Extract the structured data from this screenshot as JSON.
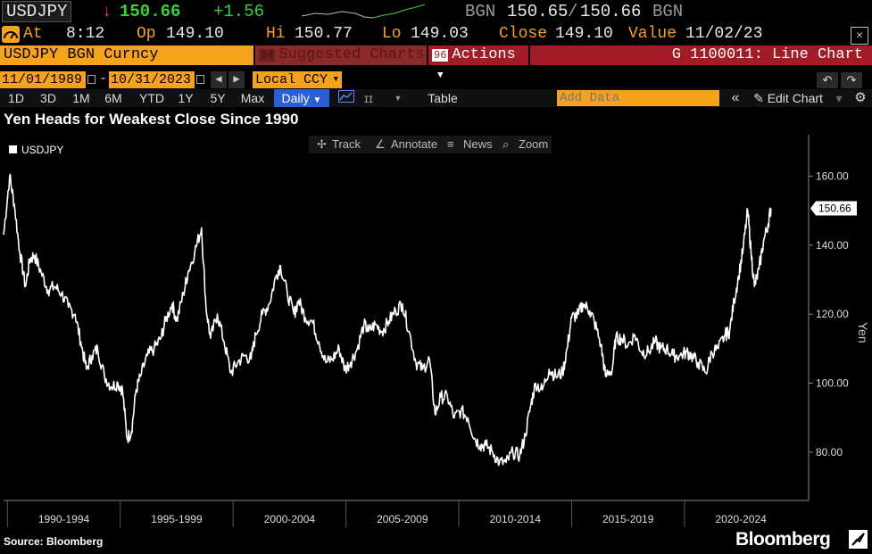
{
  "quote": {
    "ticker": "USDJPY",
    "arrow": "↓",
    "last": "150.66",
    "change": "+1.56",
    "bid_src": "BGN",
    "bid": "150.65",
    "sep": "/",
    "ask": "150.66",
    "ask_src": "BGN"
  },
  "stats": {
    "at_label": "At",
    "at_value": "8:12",
    "op_label": "Op",
    "op_value": "149.10",
    "hi_label": "Hi",
    "hi_value": "150.77",
    "lo_label": "Lo",
    "lo_value": "149.03",
    "close_label": "Close",
    "close_value": "149.10",
    "value_label": "Value",
    "value_value": "11/02/23",
    "close_icon": "✕"
  },
  "security_bar": {
    "security": "USDJPY BGN Curncy",
    "suggested_num": "94",
    "suggested_label": "Suggested Charts",
    "actions_num": "96",
    "actions_label": "Actions",
    "function_title": "G 1100011: Line Chart"
  },
  "range": {
    "start_date": "11/01/1989",
    "dash": "-",
    "end_date": "10/31/2023",
    "currency": "Local CCY"
  },
  "toolbar": {
    "periods": [
      "1D",
      "3D",
      "1M",
      "6M",
      "YTD",
      "1Y",
      "5Y",
      "Max"
    ],
    "frequency": "Daily",
    "table_label": "Table",
    "add_data_placeholder": "Add Data",
    "edit_chart_label": "Edit Chart"
  },
  "chart_tools": {
    "track": "Track",
    "annotate": "Annotate",
    "news": "News",
    "zoom": "Zoom"
  },
  "footer": {
    "source": "Source: Bloomberg",
    "brand": "Bloomberg"
  },
  "colors": {
    "accent": "#f7a21b",
    "actions_red": "#a21b25",
    "line": "#ffffff",
    "background": "#000000",
    "positive": "#3ccf3c",
    "negative": "#ff3b30"
  },
  "chart_data": {
    "type": "line",
    "title": "Yen Heads for Weakest Close Since 1990",
    "ylabel": "Yen",
    "legend": [
      "USDJPY"
    ],
    "legend_position": "top-left",
    "ylim": [
      66,
      172
    ],
    "xlim": [
      1989.83,
      2025.5
    ],
    "y_ticks": [
      80,
      100,
      120,
      140,
      160
    ],
    "y_tick_labels": [
      "80.00",
      "100.00",
      "120.00",
      "140.00",
      "160.00"
    ],
    "x_tick_labels": [
      "1990-1994",
      "1995-1999",
      "2000-2004",
      "2005-2009",
      "2010-2014",
      "2015-2019",
      "2020-2024"
    ],
    "last_value_label": "150.66",
    "grid": false,
    "series": [
      {
        "name": "USDJPY",
        "x": [
          1989.83,
          1990.1,
          1990.3,
          1990.55,
          1990.8,
          1991.0,
          1991.2,
          1991.5,
          1991.8,
          1992.1,
          1992.4,
          1992.7,
          1993.0,
          1993.25,
          1993.5,
          1993.75,
          1994.0,
          1994.3,
          1994.6,
          1994.9,
          1995.1,
          1995.3,
          1995.5,
          1995.7,
          1995.9,
          1996.2,
          1996.5,
          1996.8,
          1997.0,
          1997.3,
          1997.5,
          1997.8,
          1998.0,
          1998.3,
          1998.6,
          1998.8,
          1999.0,
          1999.3,
          1999.6,
          1999.9,
          2000.2,
          2000.5,
          2000.8,
          2001.0,
          2001.3,
          2001.6,
          2001.9,
          2002.1,
          2002.4,
          2002.7,
          2002.9,
          2003.2,
          2003.5,
          2003.8,
          2004.1,
          2004.4,
          2004.7,
          2004.95,
          2005.2,
          2005.5,
          2005.8,
          2006.0,
          2006.3,
          2006.6,
          2006.9,
          2007.2,
          2007.5,
          2007.8,
          2008.1,
          2008.4,
          2008.7,
          2008.95,
          2009.2,
          2009.5,
          2009.8,
          2010.1,
          2010.4,
          2010.7,
          2010.95,
          2011.2,
          2011.5,
          2011.8,
          2012.1,
          2012.4,
          2012.7,
          2012.95,
          2013.2,
          2013.4,
          2013.7,
          2014.0,
          2014.3,
          2014.6,
          2014.8,
          2015.0,
          2015.3,
          2015.5,
          2015.8,
          2016.0,
          2016.3,
          2016.5,
          2016.8,
          2016.95,
          2017.2,
          2017.5,
          2017.8,
          2018.1,
          2018.4,
          2018.7,
          2018.95,
          2019.2,
          2019.5,
          2019.8,
          2020.1,
          2020.3,
          2020.6,
          2020.95,
          2021.2,
          2021.5,
          2021.8,
          2022.0,
          2022.2,
          2022.4,
          2022.6,
          2022.8,
          2022.95,
          2023.1,
          2023.3,
          2023.5,
          2023.7,
          2023.83
        ],
        "y": [
          143,
          160,
          152,
          138,
          128,
          136,
          137,
          132,
          127,
          128,
          126,
          122,
          120,
          112,
          104,
          108,
          110,
          102,
          99,
          100,
          98,
          84,
          86,
          98,
          102,
          108,
          110,
          113,
          118,
          123,
          118,
          126,
          132,
          138,
          145,
          122,
          113,
          120,
          112,
          103,
          106,
          108,
          107,
          114,
          120,
          123,
          131,
          134,
          126,
          120,
          124,
          119,
          118,
          112,
          106,
          107,
          110,
          104,
          106,
          110,
          117,
          115,
          117,
          115,
          118,
          121,
          123,
          115,
          106,
          104,
          107,
          91,
          96,
          96,
          90,
          92,
          90,
          84,
          82,
          82,
          80,
          77,
          77,
          80,
          79,
          85,
          94,
          100,
          98,
          104,
          102,
          103,
          110,
          119,
          120,
          123,
          121,
          118,
          111,
          102,
          104,
          113,
          113,
          111,
          114,
          109,
          109,
          112,
          110,
          110,
          108,
          108,
          109,
          108,
          106,
          103,
          109,
          110,
          114,
          115,
          124,
          131,
          139,
          150,
          138,
          128,
          133,
          141,
          146,
          150.66
        ]
      }
    ]
  }
}
